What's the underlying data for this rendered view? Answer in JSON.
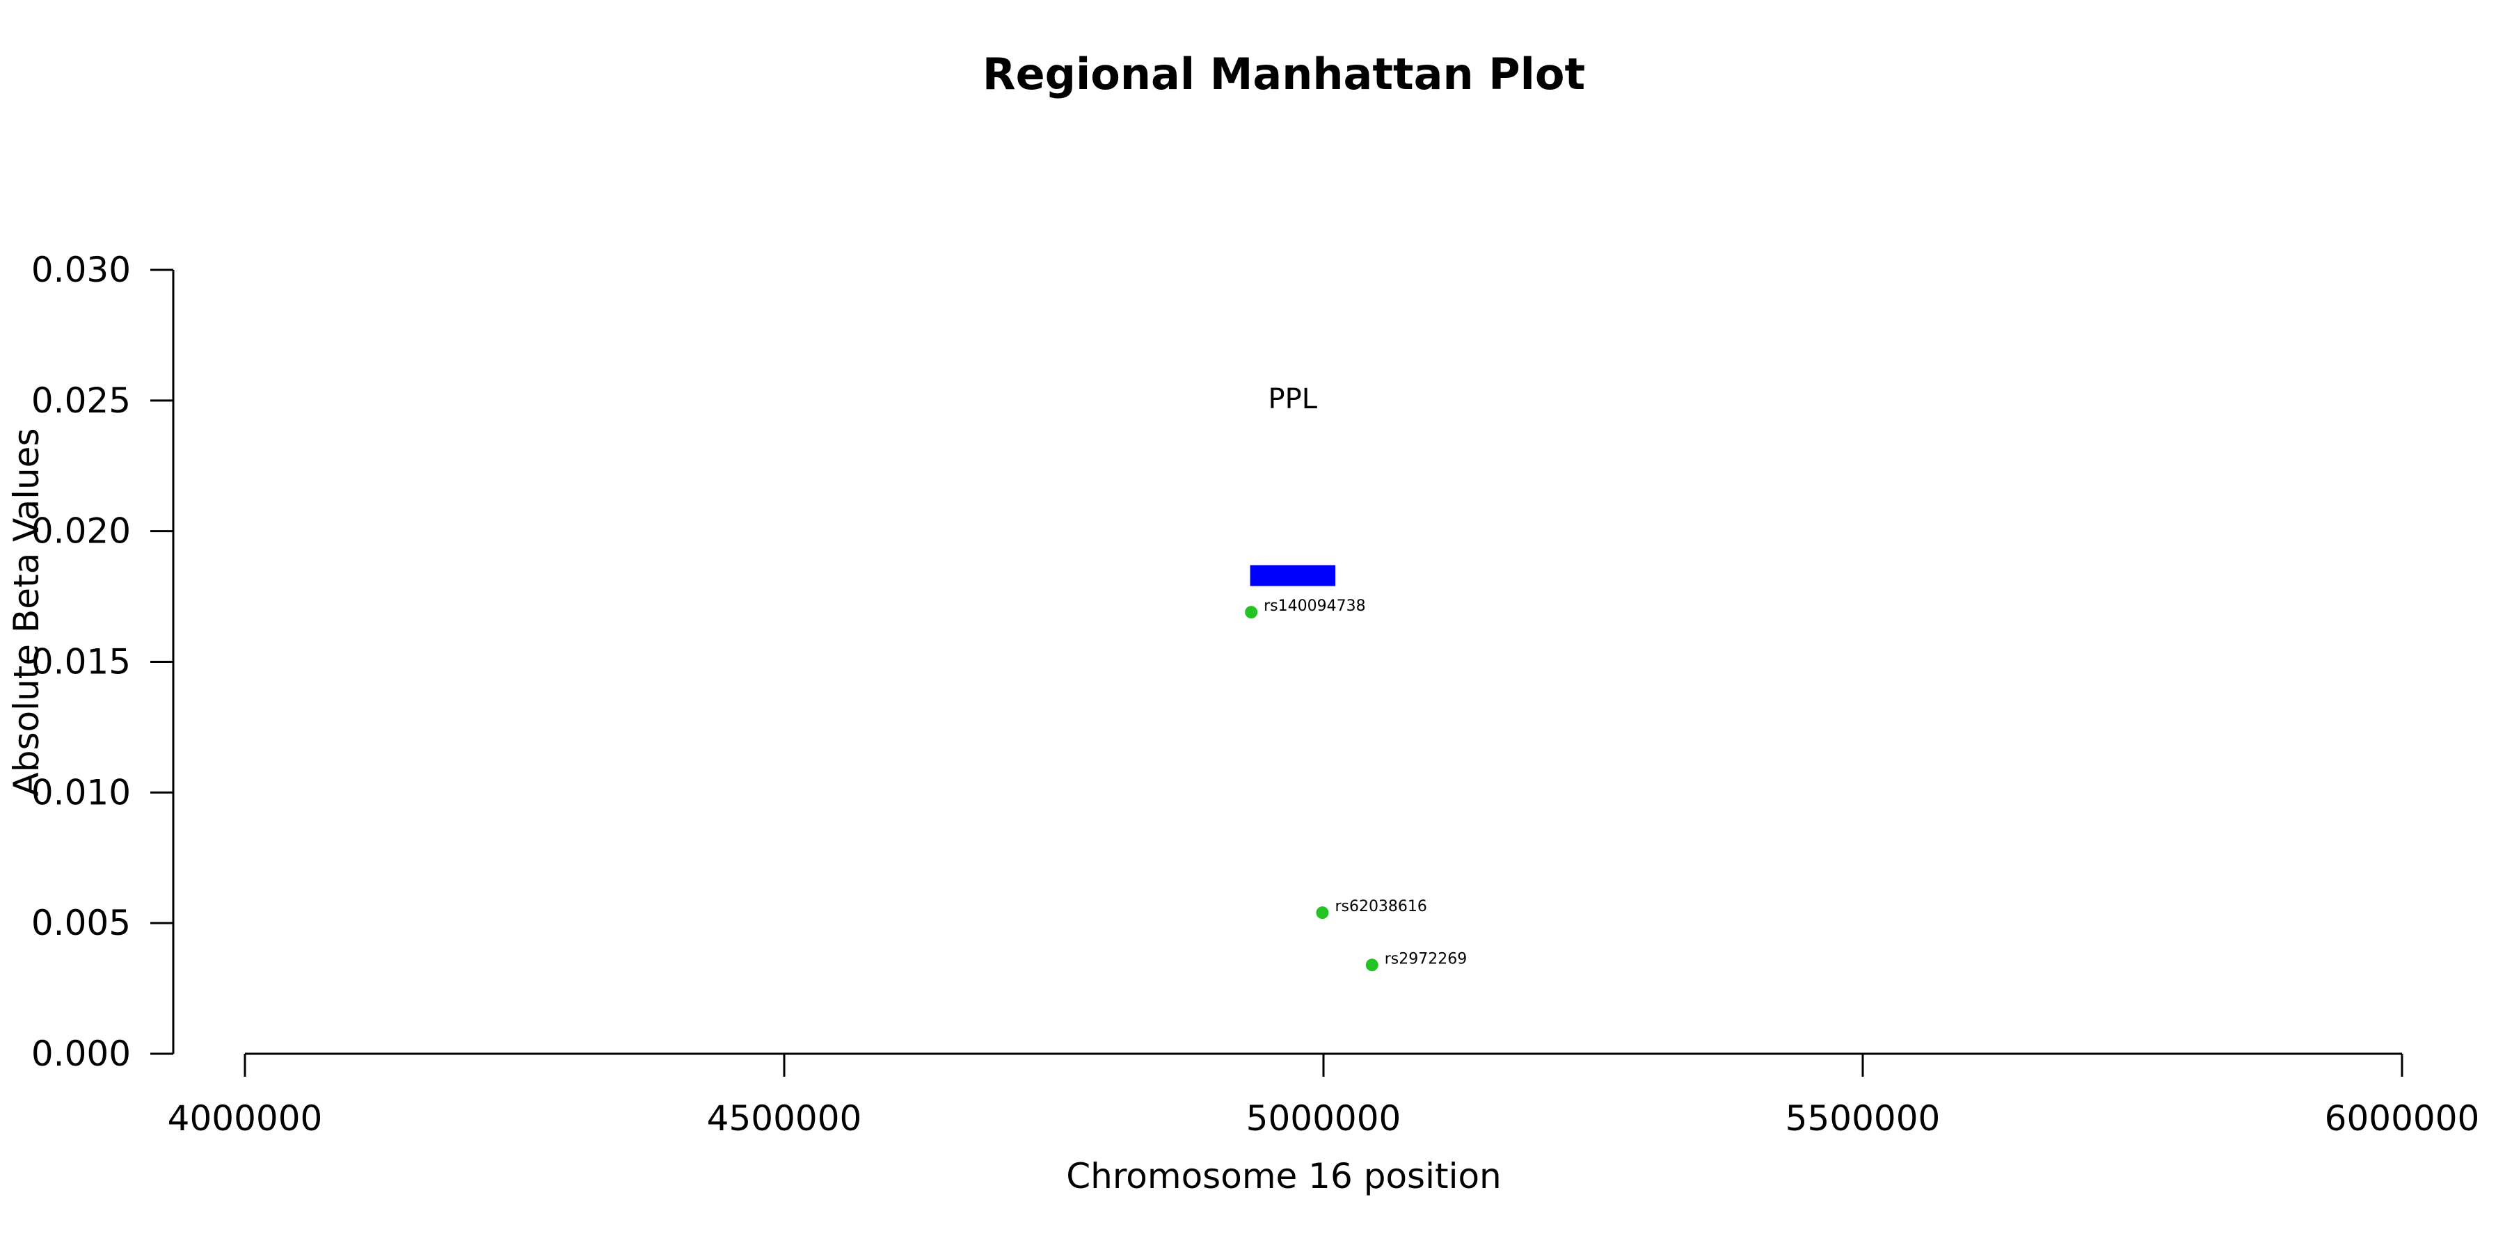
{
  "chart_data": {
    "type": "scatter",
    "title": "Regional Manhattan Plot",
    "xlabel": "Chromosome 16 position",
    "ylabel": "Absolute Beta Values",
    "xlim": [
      3930000,
      6070000
    ],
    "ylim": [
      0.0,
      0.03
    ],
    "xticks": [
      {
        "value": 4000000,
        "label": "4000000"
      },
      {
        "value": 4500000,
        "label": "4500000"
      },
      {
        "value": 5000000,
        "label": "5000000"
      },
      {
        "value": 5500000,
        "label": "5500000"
      },
      {
        "value": 6000000,
        "label": "6000000"
      }
    ],
    "yticks": [
      {
        "value": 0.0,
        "label": "0.000"
      },
      {
        "value": 0.005,
        "label": "0.005"
      },
      {
        "value": 0.01,
        "label": "0.010"
      },
      {
        "value": 0.015,
        "label": "0.015"
      },
      {
        "value": 0.02,
        "label": "0.020"
      },
      {
        "value": 0.025,
        "label": "0.025"
      },
      {
        "value": 0.03,
        "label": "0.030"
      }
    ],
    "points": [
      {
        "label": "rs140094738",
        "x": 4933000,
        "y": 0.0169,
        "color": "#22c322"
      },
      {
        "label": "rs62038616",
        "x": 4999000,
        "y": 0.0054,
        "color": "#22c322"
      },
      {
        "label": "rs2972269",
        "x": 5045000,
        "y": 0.0034,
        "color": "#22c322"
      }
    ],
    "genes": [
      {
        "name": "PPL",
        "start": 4932000,
        "end": 5011000,
        "y_low": 0.0179,
        "y_high": 0.0187,
        "label_y": 0.0247,
        "color": "#0000ff"
      }
    ],
    "grid": false,
    "legend": "none"
  }
}
